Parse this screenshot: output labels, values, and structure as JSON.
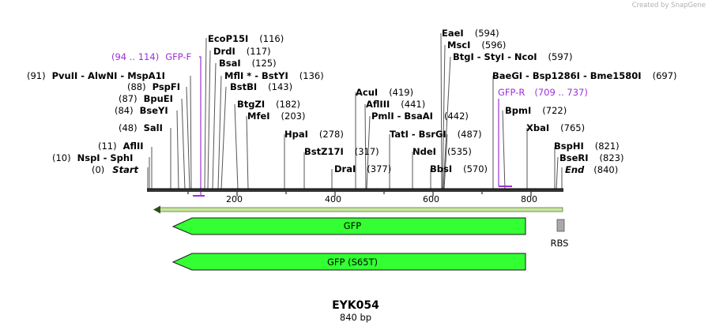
{
  "credit": "Created by SnapGene",
  "plasmid": {
    "name": "EYK054",
    "size": "840 bp"
  },
  "ruler": {
    "ticks": [
      "200",
      "400",
      "600",
      "800"
    ]
  },
  "sites": {
    "start": {
      "pos": "(0)",
      "name": "Start"
    },
    "end": {
      "name": "End",
      "pos": "(840)"
    },
    "nspi": {
      "pos": "(10)",
      "name": "NspI  - SphI"
    },
    "aflii": {
      "pos": "(11)",
      "name": "AflII"
    },
    "sali": {
      "pos": "(48)",
      "name": "SalI"
    },
    "bseyi": {
      "pos": "(84)",
      "name": "BseYI"
    },
    "bpuei": {
      "pos": "(87)",
      "name": "BpuEI"
    },
    "pspfi": {
      "pos": "(88)",
      "name": "PspFI"
    },
    "pvuii": {
      "pos": "(91)",
      "name": "PvuII  - AlwNI  - MspA1I"
    },
    "ecop15i": {
      "name": "EcoP15I",
      "pos": "(116)"
    },
    "drdi": {
      "name": "DrdI",
      "pos": "(117)"
    },
    "bsai": {
      "name": "BsaI",
      "pos": "(125)"
    },
    "mfli": {
      "name": "MflI *  - BstYI",
      "pos": "(136)"
    },
    "bstbi": {
      "name": "BstBI",
      "pos": "(143)"
    },
    "btgzi": {
      "name": "BtgZI",
      "pos": "(182)"
    },
    "mfei": {
      "name": "MfeI",
      "pos": "(203)"
    },
    "hpai": {
      "name": "HpaI",
      "pos": "(278)"
    },
    "bstz17i": {
      "name": "BstZ17I",
      "pos": "(317)"
    },
    "drai": {
      "name": "DraI",
      "pos": "(377)"
    },
    "acui": {
      "name": "AcuI",
      "pos": "(419)"
    },
    "afliii": {
      "name": "AflIII",
      "pos": "(441)"
    },
    "pmli": {
      "name": "PmlI  - BsaAI",
      "pos": "(442)"
    },
    "tati": {
      "name": "TatI  - BsrGI",
      "pos": "(487)"
    },
    "ndei": {
      "name": "NdeI",
      "pos": "(535)"
    },
    "bbsi": {
      "name": "BbsI",
      "pos": "(570)"
    },
    "eaei": {
      "name": "EaeI",
      "pos": "(594)"
    },
    "msci": {
      "name": "MscI",
      "pos": "(596)"
    },
    "btgi": {
      "name": "BtgI  - StyI  - NcoI",
      "pos": "(597)"
    },
    "baegi": {
      "name": "BaeGI  - Bsp1286I  - Bme1580I",
      "pos": "(697)"
    },
    "bpmi": {
      "name": "BpmI",
      "pos": "(722)"
    },
    "xbai": {
      "name": "XbaI",
      "pos": "(765)"
    },
    "bsphi": {
      "name": "BspHI",
      "pos": "(821)"
    },
    "bseri": {
      "name": "BseRI",
      "pos": "(823)"
    }
  },
  "primers": {
    "gfp_f": {
      "range": "(94 .. 114)",
      "name": "GFP-F"
    },
    "gfp_r": {
      "name": "GFP-R",
      "range": "(709 .. 737)"
    }
  },
  "features": {
    "gfp": "GFP",
    "gfp_s65t": "GFP (S65T)",
    "rbs": "RBS"
  },
  "colors": {
    "feature_fill": "#33ff33",
    "feature_stroke": "#1a1a1a",
    "orf_arrow": "#c8e6a0",
    "primer": "#9b30d9",
    "rbs": "#a9a9a9"
  }
}
